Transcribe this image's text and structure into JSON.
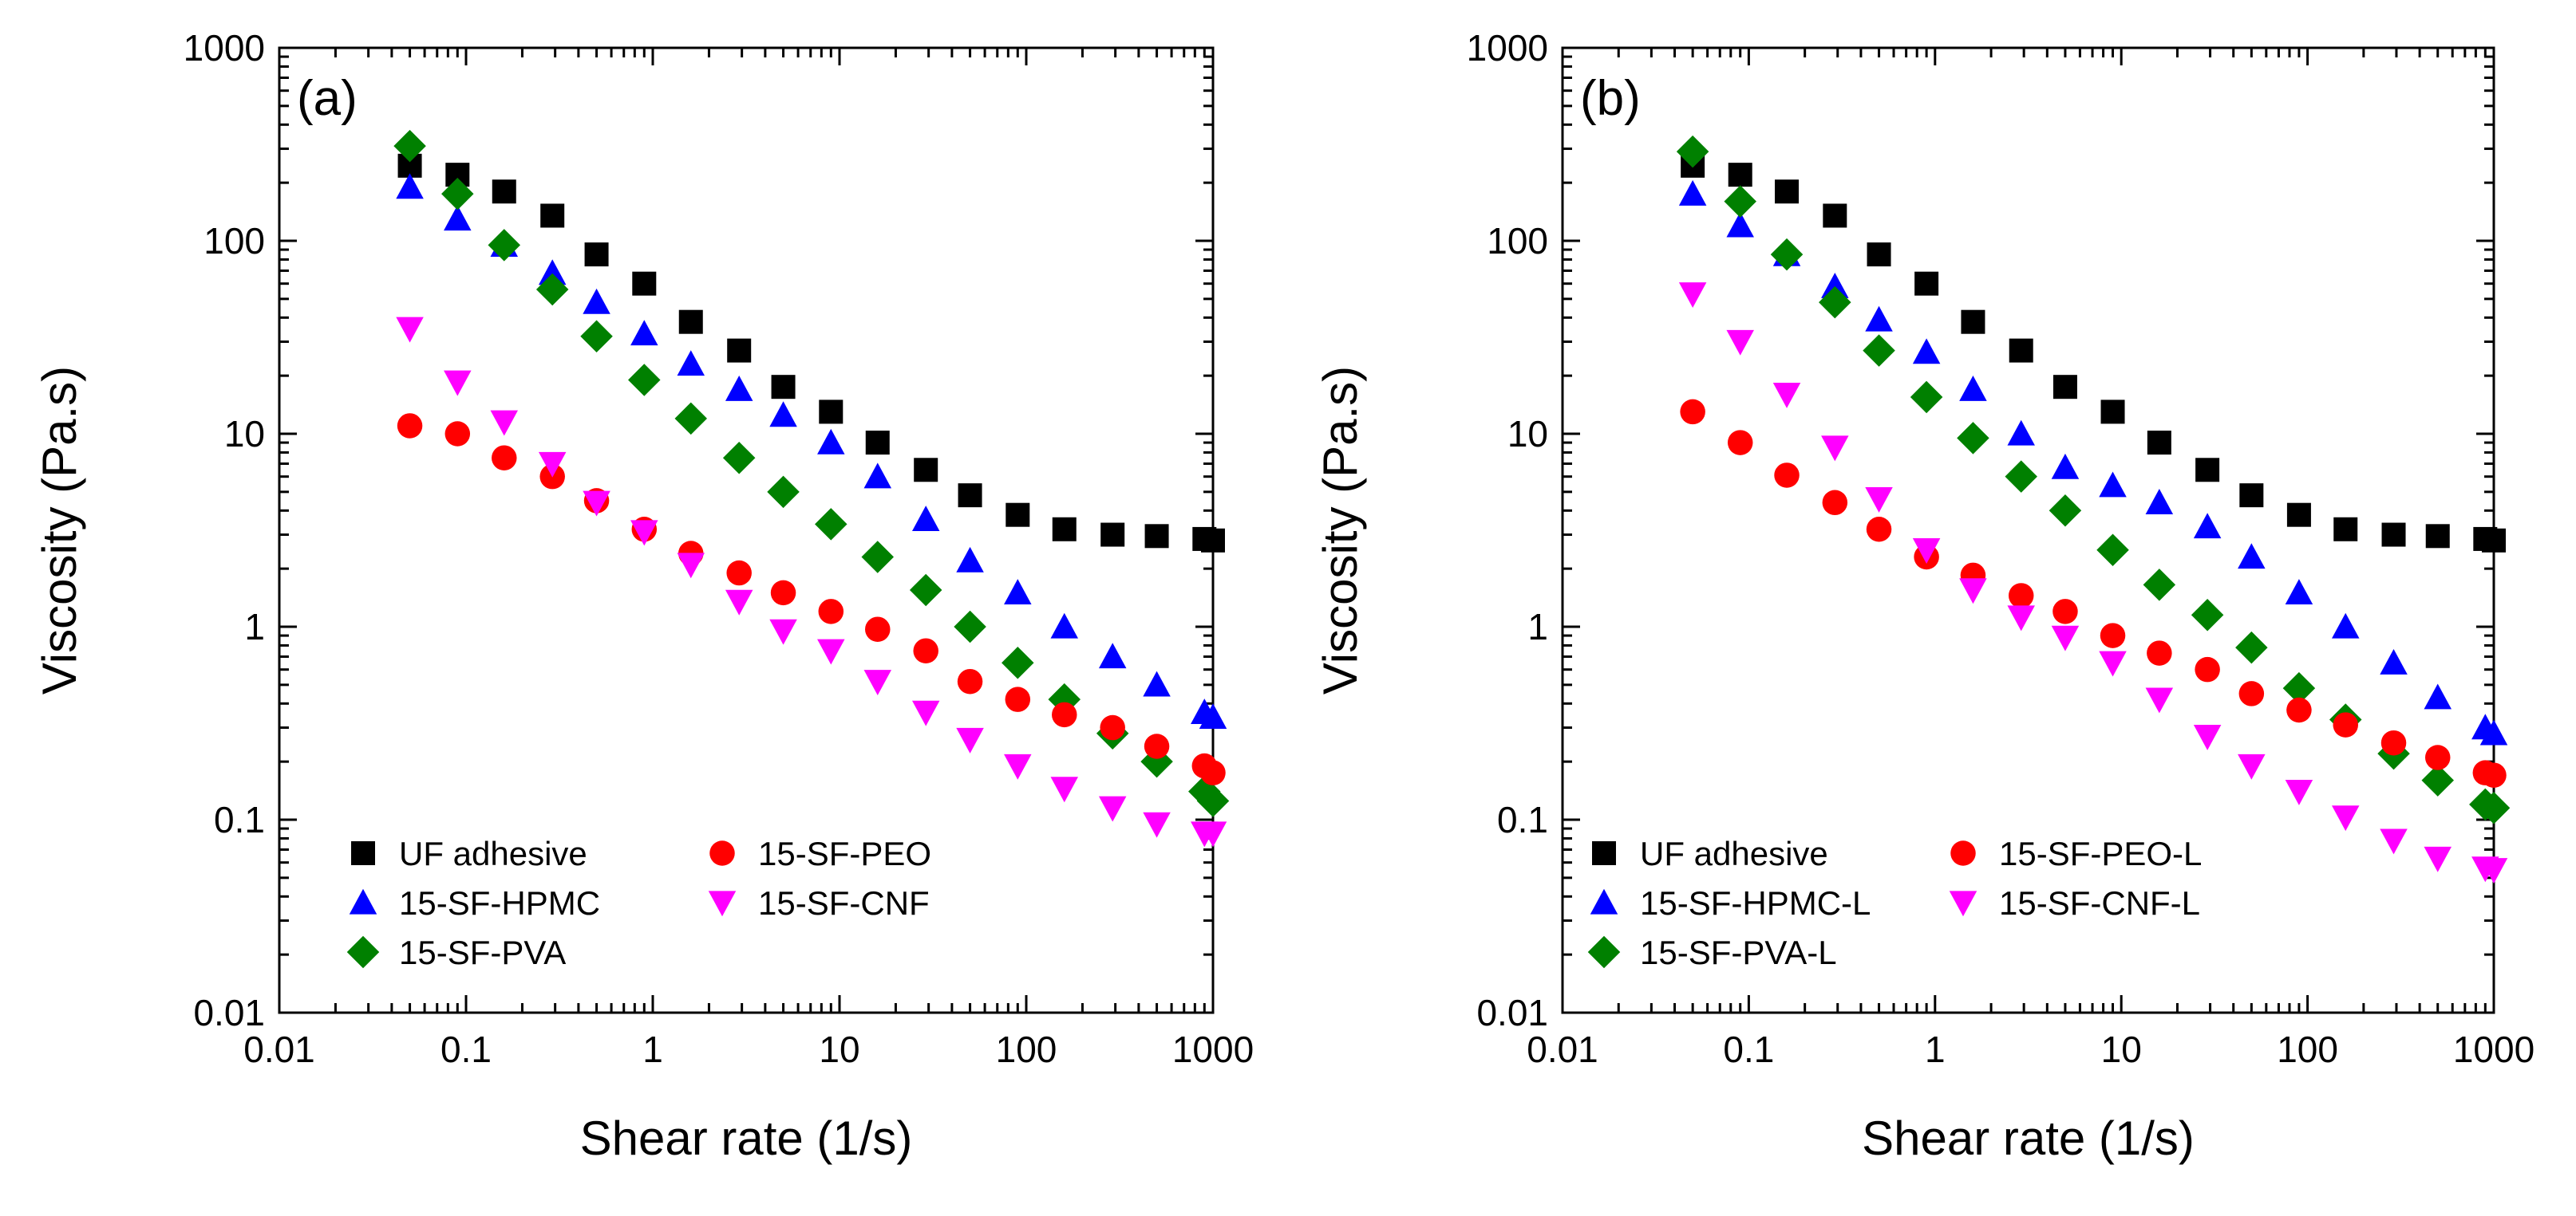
{
  "chart_data": [
    {
      "type": "scatter",
      "panel_label": "(a)",
      "xlabel": "Shear rate (1/s)",
      "ylabel": "Viscosity (Pa.s)",
      "xscale": "log",
      "yscale": "log",
      "xlim": [
        0.01,
        1000
      ],
      "ylim": [
        0.01,
        1000
      ],
      "xticks": [
        0.01,
        0.1,
        1,
        10,
        100,
        1000
      ],
      "yticks": [
        0.01,
        0.1,
        1,
        10,
        100,
        1000
      ],
      "xtick_labels": [
        "0.01",
        "0.1",
        "1",
        "10",
        "100",
        "1000"
      ],
      "ytick_labels": [
        "0.01",
        "0.1",
        "1",
        "10",
        "100",
        "1000"
      ],
      "legend_position": "bottom-left",
      "x": [
        0.05,
        0.09,
        0.16,
        0.29,
        0.5,
        0.9,
        1.6,
        2.9,
        5,
        9,
        16,
        29,
        50,
        90,
        160,
        290,
        500,
        900,
        1000
      ],
      "series": [
        {
          "name": "UF adhesive",
          "marker": "square",
          "color": "#000000",
          "values": [
            245,
            220,
            180,
            135,
            85,
            60,
            38,
            27,
            17.5,
            13,
            9,
            6.5,
            4.8,
            3.8,
            3.2,
            3.0,
            2.95,
            2.85,
            2.8
          ]
        },
        {
          "name": "15-SF-HPMC",
          "marker": "triangle-up",
          "color": "#0000ff",
          "values": [
            190,
            130,
            95,
            68,
            48,
            33,
            23,
            17,
            12.5,
            9,
            6,
            3.6,
            2.2,
            1.5,
            1.0,
            0.7,
            0.5,
            0.36,
            0.34
          ]
        },
        {
          "name": "15-SF-PVA",
          "marker": "diamond",
          "color": "#008000",
          "values": [
            310,
            175,
            95,
            56,
            32,
            19,
            12,
            7.5,
            5,
            3.4,
            2.3,
            1.55,
            1.0,
            0.65,
            0.42,
            0.28,
            0.2,
            0.14,
            0.125
          ]
        },
        {
          "name": "15-SF-PEO",
          "marker": "circle",
          "color": "#ff0000",
          "values": [
            11,
            10,
            7.5,
            6,
            4.5,
            3.2,
            2.4,
            1.9,
            1.5,
            1.2,
            0.97,
            0.75,
            0.52,
            0.42,
            0.35,
            0.3,
            0.24,
            0.19,
            0.175
          ]
        },
        {
          "name": "15-SF-CNF",
          "marker": "triangle-down",
          "color": "#ff00ff",
          "values": [
            35,
            18.5,
            11.5,
            7,
            4.4,
            3.1,
            2.1,
            1.35,
            0.95,
            0.75,
            0.52,
            0.36,
            0.26,
            0.19,
            0.145,
            0.115,
            0.095,
            0.085,
            0.085
          ]
        }
      ]
    },
    {
      "type": "scatter",
      "panel_label": "(b)",
      "xlabel": "Shear rate (1/s)",
      "ylabel": "Viscosity (Pa.s)",
      "xscale": "log",
      "yscale": "log",
      "xlim": [
        0.01,
        1000
      ],
      "ylim": [
        0.01,
        1000
      ],
      "xticks": [
        0.01,
        0.1,
        1,
        10,
        100,
        1000
      ],
      "yticks": [
        0.01,
        0.1,
        1,
        10,
        100,
        1000
      ],
      "xtick_labels": [
        "0.01",
        "0.1",
        "1",
        "10",
        "100",
        "1000"
      ],
      "ytick_labels": [
        "0.01",
        "0.1",
        "1",
        "10",
        "100",
        "1000"
      ],
      "legend_position": "bottom-left",
      "x": [
        0.05,
        0.09,
        0.16,
        0.29,
        0.5,
        0.9,
        1.6,
        2.9,
        5,
        9,
        16,
        29,
        50,
        90,
        160,
        290,
        500,
        900,
        1000
      ],
      "series": [
        {
          "name": "UF adhesive",
          "marker": "square",
          "color": "#000000",
          "values": [
            245,
            220,
            180,
            135,
            85,
            60,
            38,
            27,
            17.5,
            13,
            9,
            6.5,
            4.8,
            3.8,
            3.2,
            3.0,
            2.95,
            2.85,
            2.8
          ]
        },
        {
          "name": "15-SF-HPMC-L",
          "marker": "triangle-up",
          "color": "#0000ff",
          "values": [
            175,
            120,
            85,
            58,
            39,
            26.5,
            17,
            10,
            6.7,
            5.4,
            4.4,
            3.3,
            2.3,
            1.5,
            1.0,
            0.65,
            0.43,
            0.3,
            0.28
          ]
        },
        {
          "name": "15-SF-PVA-L",
          "marker": "diamond",
          "color": "#008000",
          "values": [
            290,
            160,
            85,
            48,
            27,
            15.5,
            9.5,
            6,
            4,
            2.5,
            1.65,
            1.15,
            0.78,
            0.48,
            0.33,
            0.22,
            0.16,
            0.12,
            0.115
          ]
        },
        {
          "name": "15-SF-PEO-L",
          "marker": "circle",
          "color": "#ff0000",
          "values": [
            13,
            9,
            6.1,
            4.4,
            3.2,
            2.3,
            1.85,
            1.45,
            1.2,
            0.9,
            0.73,
            0.6,
            0.45,
            0.37,
            0.31,
            0.25,
            0.21,
            0.175,
            0.17
          ]
        },
        {
          "name": "15-SF-CNF-L",
          "marker": "triangle-down",
          "color": "#ff00ff",
          "values": [
            53,
            30,
            16,
            8.5,
            4.6,
            2.5,
            1.55,
            1.12,
            0.88,
            0.65,
            0.42,
            0.27,
            0.19,
            0.14,
            0.103,
            0.078,
            0.063,
            0.056,
            0.055
          ]
        }
      ]
    }
  ]
}
